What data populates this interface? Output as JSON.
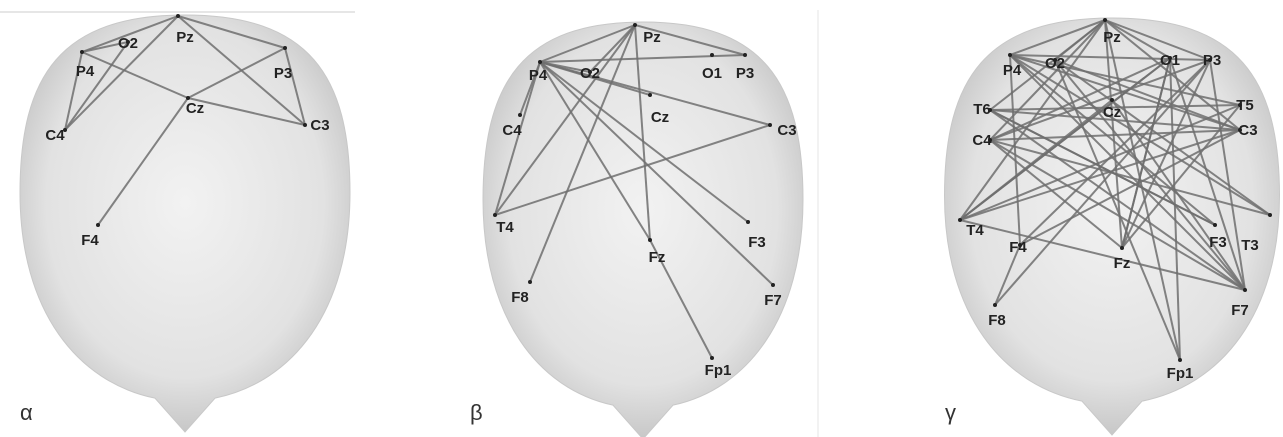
{
  "panels": [
    {
      "label": "α",
      "electrodes": [
        "Pz",
        "O2",
        "P4",
        "P3",
        "Cz",
        "C4",
        "C3",
        "F4"
      ]
    },
    {
      "label": "β",
      "electrodes": [
        "Pz",
        "P4",
        "O2",
        "O1",
        "P3",
        "Cz",
        "C4",
        "C3",
        "T4",
        "F3",
        "Fz",
        "F8",
        "F7",
        "Fp1"
      ]
    },
    {
      "label": "γ",
      "electrodes": [
        "Pz",
        "P4",
        "O2",
        "O1",
        "P3",
        "Cz",
        "T6",
        "T5",
        "C4",
        "C3",
        "T4",
        "T3",
        "F4",
        "F3",
        "Fz",
        "F8",
        "F7",
        "Fp1"
      ]
    }
  ]
}
